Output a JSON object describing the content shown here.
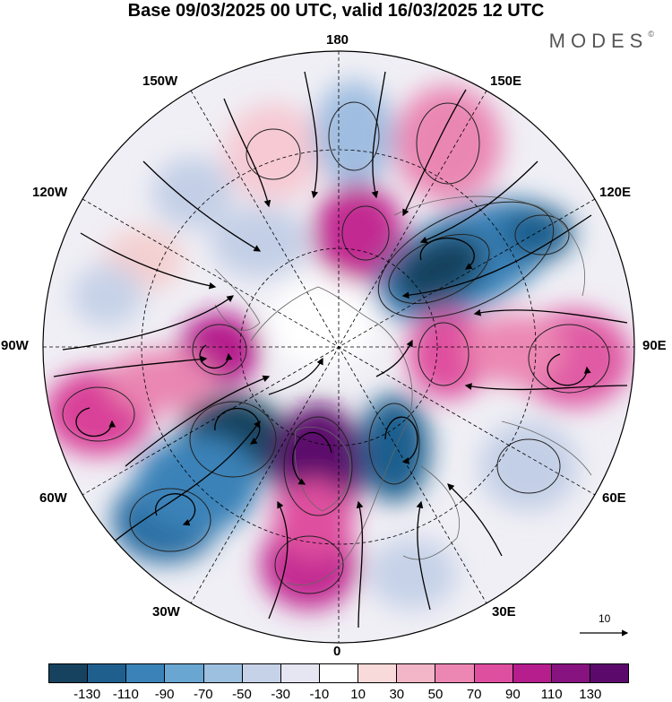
{
  "title": "Base 09/03/2025 00 UTC, valid 16/03/2025 12 UTC",
  "brand": "MODES",
  "brand_mark": "©",
  "longitude_labels": {
    "l180": "180",
    "l150E": "150E",
    "l120E": "120E",
    "l90E": "90E",
    "l60E": "60E",
    "l30E": "30E",
    "l0": "0",
    "l30W": "30W",
    "l60W": "60W",
    "l90W": "90W",
    "l120W": "120W",
    "l150W": "150W"
  },
  "reference_vector_label": "10",
  "colorbar": {
    "colors": [
      "#17425f",
      "#1f5f8e",
      "#3b82b8",
      "#6aa6d2",
      "#9dbfe0",
      "#c6d2e8",
      "#e6e6f2",
      "#ffffff",
      "#f8dada",
      "#f3b5c8",
      "#ec87b3",
      "#df4f9f",
      "#b51e8c",
      "#86137f",
      "#5b0a6c"
    ],
    "tick_labels": [
      "-130",
      "-110",
      "-90",
      "-70",
      "-50",
      "-30",
      "-10",
      "10",
      "30",
      "50",
      "70",
      "90",
      "110",
      "130"
    ]
  },
  "anomaly_centers": [
    {
      "name": "ne-asia-low",
      "value": -130,
      "color": "#17425f"
    },
    {
      "name": "nw-atlantic-low",
      "value": -130,
      "color": "#17425f"
    },
    {
      "name": "scandinavia-low",
      "value": -110,
      "color": "#1f5f8e"
    },
    {
      "name": "greenland-high",
      "value": 130,
      "color": "#5b0a6c"
    },
    {
      "name": "canada-high",
      "value": 90,
      "color": "#b51e8c"
    },
    {
      "name": "siberia-high",
      "value": 70,
      "color": "#df4f9f"
    }
  ]
}
